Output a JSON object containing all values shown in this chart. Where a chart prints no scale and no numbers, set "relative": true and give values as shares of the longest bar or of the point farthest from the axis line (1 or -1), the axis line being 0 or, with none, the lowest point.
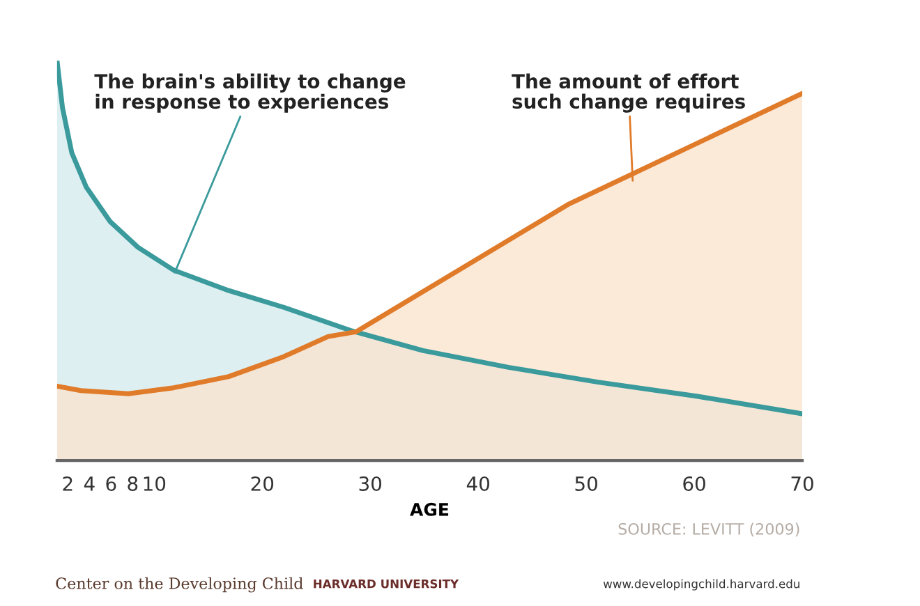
{
  "chart_data": {
    "type": "area",
    "relative": true,
    "xlabel": "AGE",
    "x": [
      1,
      1.5,
      2.36,
      3.7,
      5.9,
      8.5,
      11.8,
      16.9,
      22.0,
      28.2,
      34.9,
      42.8,
      51.1,
      60.2,
      70
    ],
    "series": [
      {
        "color": "#3a9a9c",
        "values": [
          1,
          0.883,
          0.77,
          0.684,
          0.598,
          0.533,
          0.476,
          0.425,
          0.383,
          0.325,
          0.275,
          0.233,
          0.196,
          0.161,
          0.117
        ]
      },
      {
        "color": "#e07b2a",
        "x": [
          1,
          3.2,
          7.6,
          11.8,
          16.9,
          22.0,
          26.1,
          28.7,
          48.3,
          70
        ],
        "values": [
          0.186,
          0.175,
          0.167,
          0.182,
          0.21,
          0.26,
          0.31,
          0.322,
          0.64,
          0.918
        ]
      }
    ],
    "xlim": [
      1,
      70
    ],
    "xticks": [
      2,
      4,
      6,
      8,
      10,
      20,
      30,
      40,
      50,
      60,
      70
    ],
    "grid": false,
    "legend": false,
    "annotations": [
      {
        "text": "The brain's ability to change\nin response to experiences",
        "x": 11.9,
        "y": 0.47
      },
      {
        "text": "The amount of effort\nsuch change requires",
        "x": 54.3,
        "y": 0.7
      },
      "SOURCE: LEVITT (2009)",
      "Center on the Developing Child",
      "HARVARD UNIVERSITY",
      "www.developingchild.harvard.edu"
    ]
  }
}
